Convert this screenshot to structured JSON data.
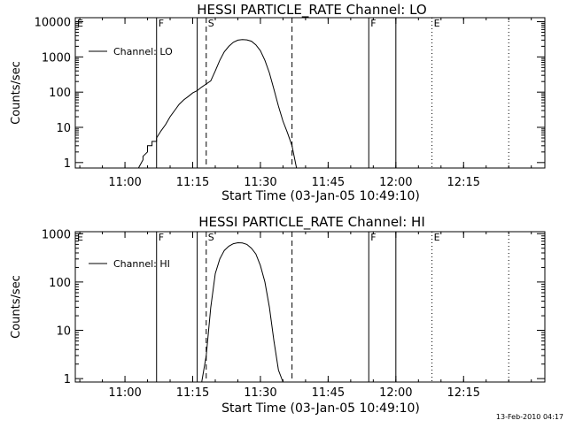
{
  "footer": {
    "timestamp": "13-Feb-2010 04:17"
  },
  "colors": {
    "line": "#000000",
    "background": "#ffffff"
  },
  "chart_data": [
    {
      "type": "line",
      "title": "HESSI PARTICLE_RATE Channel: LO",
      "xlabel": "Start Time (03-Jan-05 10:49:10)",
      "ylabel": "Counts/sec",
      "y_scale": "log",
      "ylim": [
        0.7,
        13000
      ],
      "xlim": [
        "10:49",
        "12:33"
      ],
      "x_ticks": [
        "11:00",
        "11:15",
        "11:30",
        "11:45",
        "12:00",
        "12:15"
      ],
      "y_ticks": [
        "1",
        "10",
        "100",
        "1000",
        "10000"
      ],
      "legend": {
        "label": "Channel: LO",
        "placement": "top-left"
      },
      "markers": [
        {
          "time": "10:49",
          "label": "E",
          "style": "solid"
        },
        {
          "time": "11:07",
          "label": "F",
          "style": "solid"
        },
        {
          "time": "11:16",
          "label": "",
          "style": "solid"
        },
        {
          "time": "11:18",
          "label": "S",
          "style": "dashed"
        },
        {
          "time": "11:37",
          "label": "",
          "style": "dashed"
        },
        {
          "time": "11:54",
          "label": "F",
          "style": "solid"
        },
        {
          "time": "12:00",
          "label": "",
          "style": "solid"
        },
        {
          "time": "12:08",
          "label": "E",
          "style": "dotted"
        },
        {
          "time": "12:25",
          "label": "",
          "style": "dotted"
        }
      ],
      "series": [
        {
          "name": "Channel: LO",
          "x": [
            "11:03",
            "11:04",
            "11:04",
            "11:05",
            "11:05",
            "11:06",
            "11:06",
            "11:07",
            "11:07",
            "11:08",
            "11:09",
            "11:10",
            "11:11",
            "11:12",
            "11:13",
            "11:14",
            "11:15",
            "11:16",
            "11:17",
            "11:18",
            "11:19",
            "11:20",
            "11:21",
            "11:22",
            "11:23",
            "11:24",
            "11:25",
            "11:26",
            "11:27",
            "11:28",
            "11:29",
            "11:30",
            "11:31",
            "11:32",
            "11:33",
            "11:34",
            "11:35",
            "11:36",
            "11:37",
            "11:38"
          ],
          "y": [
            0.7,
            1.2,
            1.5,
            2,
            3,
            3,
            4,
            4,
            5,
            8,
            12,
            20,
            30,
            45,
            60,
            75,
            95,
            110,
            140,
            170,
            210,
            400,
            800,
            1400,
            2000,
            2600,
            3000,
            3100,
            3050,
            2800,
            2200,
            1500,
            800,
            350,
            120,
            40,
            15,
            7,
            3,
            0.7
          ]
        }
      ]
    },
    {
      "type": "line",
      "title": "HESSI PARTICLE_RATE Channel: HI",
      "xlabel": "Start Time (03-Jan-05 10:49:10)",
      "ylabel": "Counts/sec",
      "y_scale": "log",
      "ylim": [
        0.85,
        1100
      ],
      "xlim": [
        "10:49",
        "12:33"
      ],
      "x_ticks": [
        "11:00",
        "11:15",
        "11:30",
        "11:45",
        "12:00",
        "12:15"
      ],
      "y_ticks": [
        "1",
        "10",
        "100",
        "1000"
      ],
      "legend": {
        "label": "Channel: HI",
        "placement": "top-left"
      },
      "markers": [
        {
          "time": "10:49",
          "label": "E",
          "style": "solid"
        },
        {
          "time": "11:07",
          "label": "F",
          "style": "solid"
        },
        {
          "time": "11:16",
          "label": "",
          "style": "solid"
        },
        {
          "time": "11:18",
          "label": "S",
          "style": "dashed"
        },
        {
          "time": "11:37",
          "label": "",
          "style": "dashed"
        },
        {
          "time": "11:54",
          "label": "F",
          "style": "solid"
        },
        {
          "time": "12:00",
          "label": "",
          "style": "solid"
        },
        {
          "time": "12:08",
          "label": "E",
          "style": "dotted"
        },
        {
          "time": "12:25",
          "label": "",
          "style": "dotted"
        }
      ],
      "series": [
        {
          "name": "Channel: HI",
          "x": [
            "11:17",
            "11:18",
            "11:19",
            "11:20",
            "11:21",
            "11:22",
            "11:23",
            "11:24",
            "11:25",
            "11:26",
            "11:27",
            "11:28",
            "11:29",
            "11:30",
            "11:31",
            "11:32",
            "11:33",
            "11:34",
            "11:35"
          ],
          "y": [
            0.85,
            3,
            30,
            150,
            300,
            450,
            550,
            620,
            650,
            640,
            600,
            500,
            380,
            220,
            100,
            30,
            6,
            1.5,
            0.85
          ]
        }
      ]
    }
  ]
}
